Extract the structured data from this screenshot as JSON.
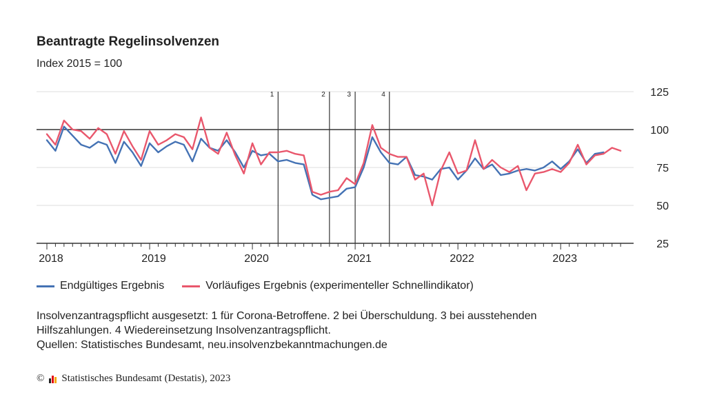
{
  "header": {
    "title": "Beantragte Regelinsolvenzen",
    "subtitle": "Index 2015 = 100"
  },
  "legend": {
    "items": [
      {
        "label": "Endgültiges Ergebnis",
        "color": "#4472b4"
      },
      {
        "label": "Vorläufiges Ergebnis (experimenteller Schnellindikator)",
        "color": "#e9576c"
      }
    ]
  },
  "notes": {
    "line1": "Insolvenzantragspflicht ausgesetzt: 1 für Corona-Betroffene. 2 bei Überschuldung. 3 bei ausstehenden",
    "line2": "Hilfszahlungen. 4 Wiedereinsetzung Insolvenzantragspflicht.",
    "line3": "Quellen: Statistisches Bundesamt, neu.insolvenzbekanntmachungen.de"
  },
  "footer": {
    "copyright_symbol": "©",
    "copyright_text": "Statistisches Bundesamt (Destatis), 2023",
    "logo_colors": [
      "#222222",
      "#e30613",
      "#f5a800"
    ]
  },
  "chart_data": {
    "type": "line",
    "x_start": "2018-01",
    "x_labels": [
      "2018",
      "2019",
      "2020",
      "2021",
      "2022",
      "2023"
    ],
    "y_ticks": [
      25,
      50,
      75,
      100,
      125
    ],
    "ylim": [
      25,
      125
    ],
    "reference_line": 100,
    "grid": true,
    "vertical_markers": [
      {
        "label": "1",
        "date": "2020-04"
      },
      {
        "label": "2",
        "date": "2020-10"
      },
      {
        "label": "3",
        "date": "2021-01"
      },
      {
        "label": "4",
        "date": "2021-05"
      }
    ],
    "series": [
      {
        "name": "Endgültiges Ergebnis",
        "color": "#4472b4",
        "values": [
          93,
          86,
          102,
          96,
          90,
          88,
          92,
          90,
          78,
          92,
          85,
          76,
          91,
          85,
          89,
          92,
          90,
          79,
          94,
          88,
          86,
          93,
          85,
          75,
          86,
          83,
          84,
          79,
          80,
          78,
          77,
          57,
          54,
          55,
          56,
          61,
          62,
          75,
          95,
          85,
          78,
          77,
          82,
          70,
          69,
          67,
          74,
          75,
          67,
          73,
          81,
          74,
          77,
          70,
          71,
          73,
          74,
          73,
          75,
          79,
          74,
          79,
          87,
          78,
          84,
          85
        ]
      },
      {
        "name": "Vorläufiges Ergebnis (experimenteller Schnellindikator)",
        "color": "#e9576c",
        "values": [
          97,
          90,
          106,
          100,
          99,
          94,
          101,
          97,
          84,
          99,
          89,
          80,
          99,
          90,
          93,
          97,
          95,
          87,
          108,
          88,
          84,
          98,
          83,
          71,
          91,
          77,
          85,
          85,
          86,
          84,
          83,
          59,
          57,
          59,
          60,
          68,
          64,
          78,
          103,
          88,
          84,
          82,
          82,
          67,
          71,
          50,
          73,
          85,
          71,
          73,
          93,
          74,
          80,
          75,
          72,
          76,
          60,
          71,
          72,
          74,
          72,
          78,
          90,
          77,
          83,
          84,
          88,
          86
        ]
      }
    ]
  }
}
